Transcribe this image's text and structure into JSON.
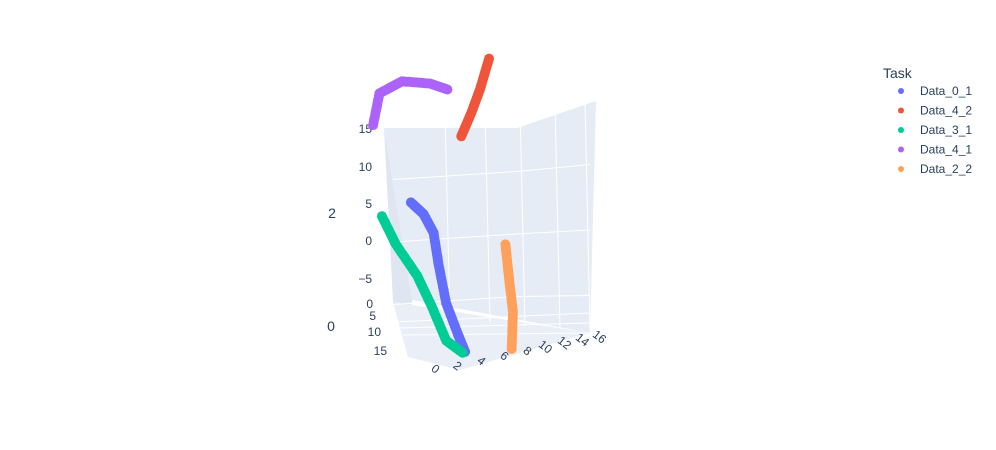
{
  "chart_data": {
    "type": "scatter",
    "legend_title": "Task",
    "legend_position": "top-right",
    "axis_titles": {
      "x": "",
      "y": "0",
      "z": "2"
    },
    "x_ticks": [
      "0",
      "2",
      "4",
      "6",
      "8",
      "10",
      "12",
      "14",
      "16"
    ],
    "y_ticks": [
      "0",
      "5",
      "10",
      "15"
    ],
    "z_ticks": [
      "−5",
      "0",
      "5",
      "10",
      "15"
    ],
    "grid": true,
    "background_color": "#e5ecf6",
    "series": [
      {
        "name": "Data_0_1",
        "color": "#636efa",
        "points": [
          [
            1.5,
            0,
            3.2
          ],
          [
            2.5,
            0,
            2.4
          ],
          [
            3.3,
            0,
            1.0
          ],
          [
            3.7,
            0,
            -1.5
          ],
          [
            4.3,
            0,
            -4.5
          ],
          [
            5.2,
            0,
            -6.8
          ],
          [
            5.8,
            0,
            -8.2
          ]
        ]
      },
      {
        "name": "Data_4_2",
        "color": "#ef553b",
        "points": [
          [
            5.5,
            0,
            9.0
          ],
          [
            6.3,
            0,
            11.0
          ],
          [
            7.0,
            0,
            13.0
          ],
          [
            7.7,
            0,
            15.5
          ]
        ]
      },
      {
        "name": "Data_3_1",
        "color": "#00cc96",
        "points": [
          [
            -0.8,
            0,
            1.8
          ],
          [
            0.3,
            0,
            -0.3
          ],
          [
            2.0,
            0,
            -2.6
          ],
          [
            3.2,
            0,
            -5.0
          ],
          [
            4.3,
            0,
            -7.5
          ],
          [
            5.6,
            0,
            -8.3
          ]
        ]
      },
      {
        "name": "Data_4_1",
        "color": "#ab63fa",
        "points": [
          [
            -1.5,
            0,
            9.0
          ],
          [
            -1.0,
            0,
            11.6
          ],
          [
            0.8,
            0,
            12.8
          ],
          [
            3.0,
            0,
            12.9
          ],
          [
            4.4,
            0,
            12.6
          ]
        ]
      },
      {
        "name": "Data_2_2",
        "color": "#ffa15a",
        "points": [
          [
            9.0,
            0,
            0.8
          ],
          [
            9.3,
            0,
            -2.0
          ],
          [
            9.6,
            0,
            -4.5
          ],
          [
            9.5,
            0,
            -7.5
          ]
        ]
      }
    ]
  }
}
